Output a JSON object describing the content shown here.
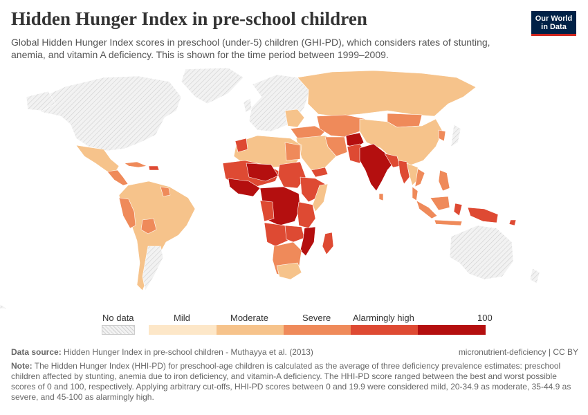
{
  "title": "Hidden Hunger Index in pre-school children",
  "subtitle": "Global Hidden Hunger Index scores in preschool (under-5) children (GHI-PD), which considers rates of stunting, anemia, and vitamin A deficiency. This is shown for the time period between 1999–2009.",
  "logo": {
    "line1": "Our World",
    "line2": "in Data"
  },
  "legend": {
    "no_data": "No data",
    "categories": [
      "Mild",
      "Moderate",
      "Severe",
      "Alarmingly high"
    ],
    "max_label": "100",
    "colors": {
      "no_data": "#e8e8e8",
      "mild": "#fde7c8",
      "moderate": "#f6c38b",
      "severe": "#ef8a5a",
      "alarming": "#de4a33",
      "extreme": "#b40f0f"
    }
  },
  "footer": {
    "source_label": "Data source:",
    "source_text": "Hidden Hunger Index in pre-school children - Muthayya et al. (2013)",
    "license": "micronutrient-deficiency | CC BY",
    "note_label": "Note:",
    "note_text": "The Hidden Hunger Index (HHI-PD) for preschool-age children is calculated as the average of three deficiency prevalence estimates: preschool children affected by stunting, anemia due to iron deficiency, and vitamin-A deficiency. The HHI-PD score ranged between the best and worst possible scores of 0 and 100, respectively. Applying arbitrary cut-offs, HHI-PD scores between 0 and 19.9 were considered mild, 20-34.9 as moderate, 35-44.9 as severe, and 45-100 as alarmingly high."
  }
}
